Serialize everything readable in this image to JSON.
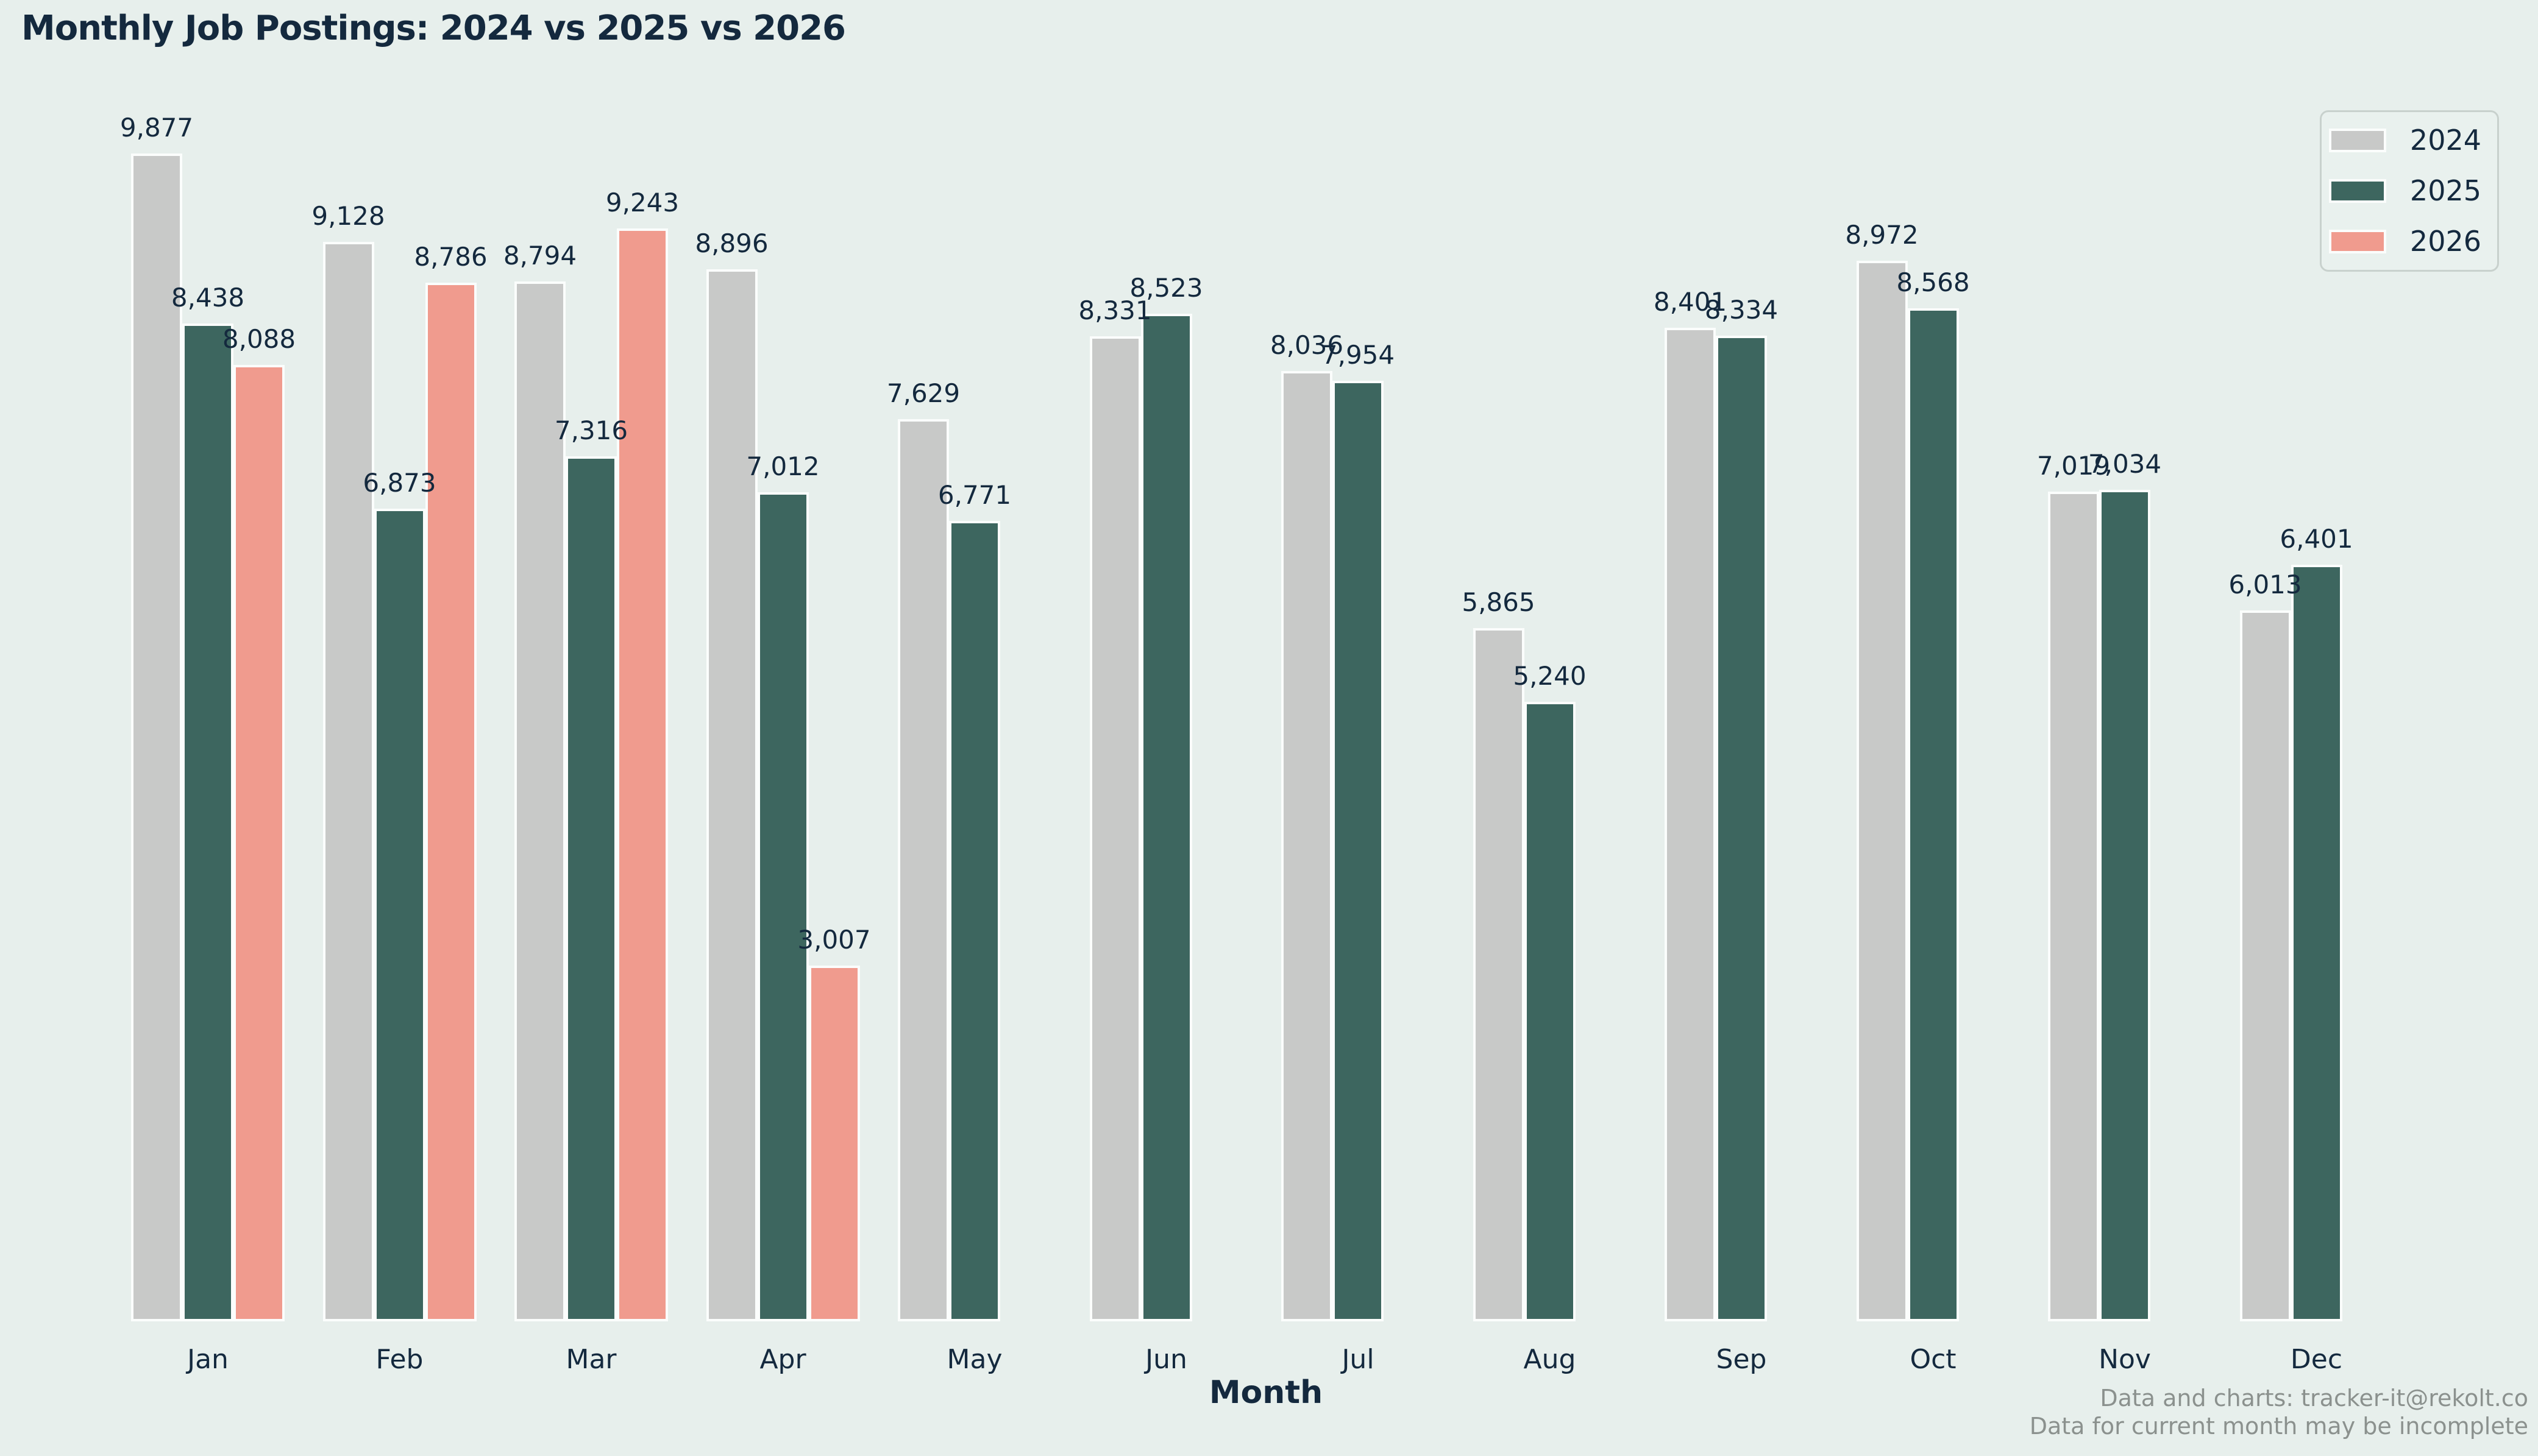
{
  "title": "Monthly Job Postings: 2024 vs 2025 vs 2026",
  "footer": {
    "line1": "Data and charts: tracker-it@rekolt.co",
    "line2": "Data for current month may be incomplete"
  },
  "colors": {
    "bg": "#e7efec",
    "text": "#14293e",
    "edge": "#fbfdfc",
    "muted": "#8b918e",
    "legend_bg": "#e9f1ee",
    "legend_border": "#c8d1cd"
  },
  "chart_data": {
    "type": "bar",
    "title": "Monthly Job Postings: 2024 vs 2025 vs 2026",
    "xlabel": "Month",
    "ylabel": "",
    "categories": [
      "Jan",
      "Feb",
      "Mar",
      "Apr",
      "May",
      "Jun",
      "Jul",
      "Aug",
      "Sep",
      "Oct",
      "Nov",
      "Dec"
    ],
    "series": [
      {
        "name": "2024",
        "color": "#c8c9c8",
        "values": [
          9877,
          9128,
          8794,
          8896,
          7629,
          8331,
          8036,
          5865,
          8401,
          8972,
          7019,
          6013
        ]
      },
      {
        "name": "2025",
        "color": "#3d665f",
        "values": [
          8438,
          6873,
          7316,
          7012,
          6771,
          8523,
          7954,
          5240,
          8334,
          8568,
          7034,
          6401
        ]
      },
      {
        "name": "2026",
        "color": "#f09b8e",
        "values": [
          8088,
          8786,
          9243,
          3007,
          null,
          null,
          null,
          null,
          null,
          null,
          null,
          null
        ]
      }
    ],
    "value_labels": true,
    "grid": false,
    "y_axis_visible": false,
    "ylim": [
      0,
      10500
    ],
    "legend_position": "upper right"
  }
}
